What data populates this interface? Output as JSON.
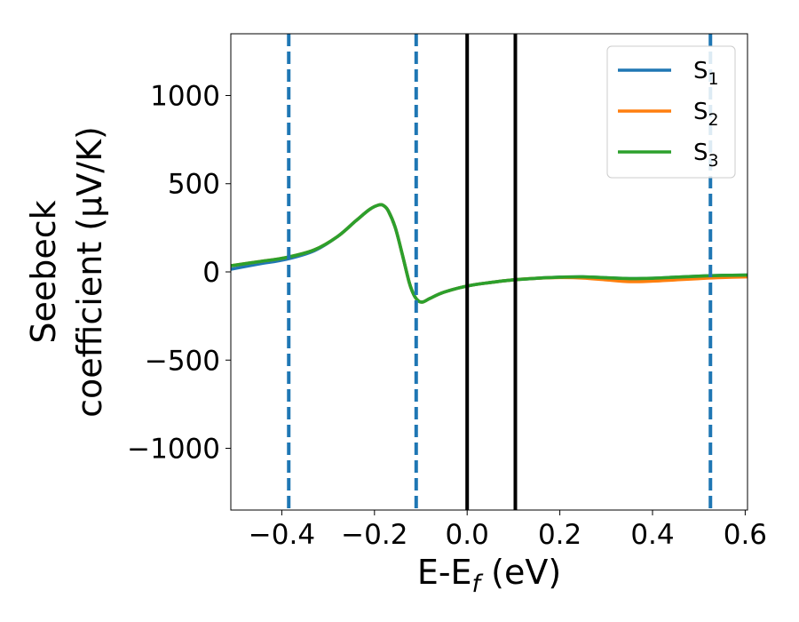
{
  "chart_data": {
    "type": "line",
    "xlabel": {
      "main": "E-E",
      "sub": "f",
      "suffix": " (eV)"
    },
    "ylabel": {
      "line1": "Seebeck",
      "line2": "coefficient  (μV/K)"
    },
    "xlim": [
      -0.51,
      0.605
    ],
    "ylim": [
      -1350,
      1350
    ],
    "xticks": [
      -0.4,
      -0.2,
      0.0,
      0.2,
      0.4,
      0.6
    ],
    "xtick_labels": [
      "−0.4",
      "−0.2",
      "0.0",
      "0.2",
      "0.4",
      "0.6"
    ],
    "yticks": [
      1000,
      500,
      0,
      -500,
      -1000
    ],
    "ytick_labels": [
      "1000",
      "500",
      "0",
      "−500",
      "−1000"
    ],
    "grid": false,
    "legend_position": "top-right",
    "series": [
      {
        "name": "S",
        "sub": "1",
        "color": "#1f77b4",
        "x": [
          -0.51,
          -0.45,
          -0.39,
          -0.33,
          -0.28,
          -0.24,
          -0.21,
          -0.19,
          -0.18,
          -0.17,
          -0.155,
          -0.14,
          -0.125,
          -0.115,
          -0.105,
          -0.095,
          -0.08,
          -0.05,
          0.0,
          0.05,
          0.1,
          0.15,
          0.2,
          0.25,
          0.3,
          0.35,
          0.4,
          0.45,
          0.5,
          0.55,
          0.605
        ],
        "y": [
          15,
          45,
          72,
          120,
          200,
          290,
          355,
          380,
          375,
          345,
          250,
          100,
          -60,
          -130,
          -165,
          -170,
          -150,
          -115,
          -80,
          -60,
          -45,
          -36,
          -30,
          -28,
          -33,
          -38,
          -36,
          -30,
          -24,
          -20,
          -18
        ]
      },
      {
        "name": "S",
        "sub": "2",
        "color": "#ff7f0e",
        "x": [
          -0.51,
          -0.45,
          -0.39,
          -0.33,
          -0.28,
          -0.24,
          -0.21,
          -0.19,
          -0.18,
          -0.17,
          -0.155,
          -0.14,
          -0.125,
          -0.115,
          -0.105,
          -0.095,
          -0.08,
          -0.05,
          0.0,
          0.05,
          0.1,
          0.15,
          0.2,
          0.25,
          0.3,
          0.35,
          0.4,
          0.45,
          0.5,
          0.55,
          0.605
        ],
        "y": [
          35,
          58,
          82,
          125,
          200,
          290,
          355,
          380,
          375,
          345,
          250,
          100,
          -60,
          -130,
          -165,
          -170,
          -150,
          -115,
          -80,
          -60,
          -45,
          -36,
          -32,
          -35,
          -45,
          -55,
          -52,
          -45,
          -38,
          -32,
          -28
        ]
      },
      {
        "name": "S",
        "sub": "3",
        "color": "#2ca02c",
        "x": [
          -0.51,
          -0.45,
          -0.39,
          -0.33,
          -0.28,
          -0.24,
          -0.21,
          -0.19,
          -0.18,
          -0.17,
          -0.155,
          -0.14,
          -0.125,
          -0.115,
          -0.105,
          -0.095,
          -0.08,
          -0.05,
          0.0,
          0.05,
          0.1,
          0.15,
          0.2,
          0.25,
          0.3,
          0.35,
          0.4,
          0.45,
          0.5,
          0.55,
          0.605
        ],
        "y": [
          35,
          58,
          82,
          125,
          200,
          290,
          355,
          380,
          375,
          345,
          250,
          100,
          -60,
          -130,
          -165,
          -170,
          -150,
          -115,
          -80,
          -60,
          -45,
          -36,
          -30,
          -28,
          -33,
          -38,
          -36,
          -30,
          -24,
          -20,
          -18
        ]
      }
    ],
    "vlines_dashed": {
      "color": "#1f77b4",
      "x": [
        -0.385,
        -0.11,
        0.525
      ]
    },
    "vlines_solid": {
      "color": "#000000",
      "x": [
        0.0,
        0.104
      ]
    }
  }
}
